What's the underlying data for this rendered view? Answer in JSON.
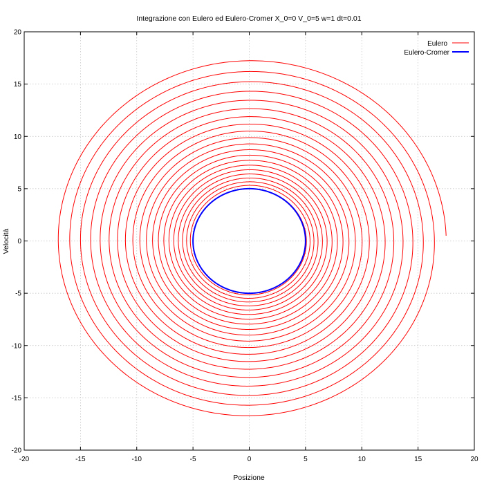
{
  "chart_data": {
    "type": "line",
    "title": "Integrazione con Eulero ed Eulero-Cromer X_0=0  V_0=5 w=1 dt=0.01",
    "xlabel": "Posizione",
    "ylabel": "Velocità",
    "xlim": [
      -20,
      20
    ],
    "ylim": [
      -20,
      20
    ],
    "x_ticks": [
      -20,
      -15,
      -10,
      -5,
      0,
      5,
      10,
      15,
      20
    ],
    "y_ticks": [
      -20,
      -15,
      -10,
      -5,
      0,
      5,
      10,
      15,
      20
    ],
    "grid": true,
    "legend_position": "top-right",
    "series": [
      {
        "name": "Eulero",
        "color": "#ff0000",
        "method": "euler",
        "x0": 0,
        "v0": 5,
        "omega": 1,
        "dt": 0.01,
        "final_point": [
          17.5,
          -0.5
        ],
        "max_radius": 17.5,
        "revolutions": 20
      },
      {
        "name": "Eulero-Cromer",
        "color": "#0000ff",
        "method": "euler-cromer",
        "x0": 0,
        "v0": 5,
        "omega": 1,
        "dt": 0.01,
        "amplitude": 5
      }
    ]
  }
}
